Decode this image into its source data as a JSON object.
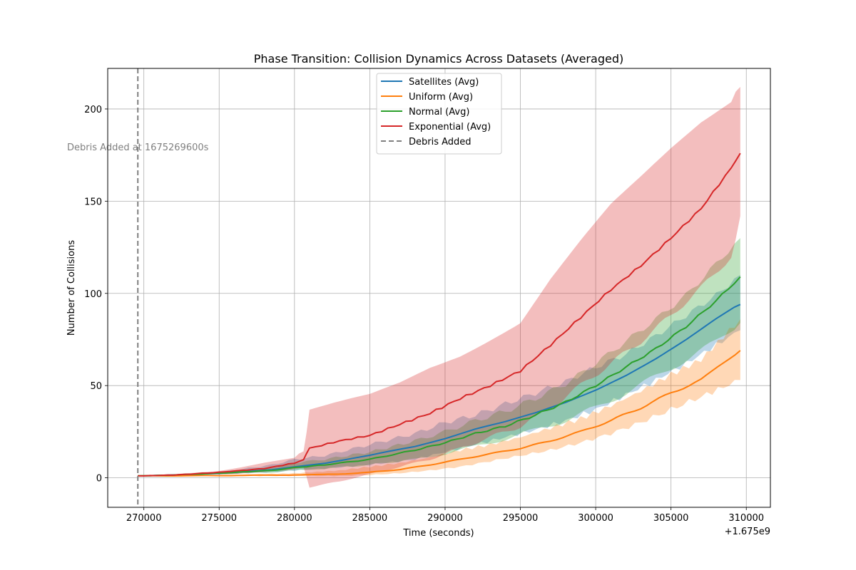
{
  "chart_data": {
    "type": "line",
    "title": "Phase Transition: Collision Dynamics Across Datasets (Averaged)",
    "xlabel": "Time (seconds)",
    "ylabel": "Number of Collisions",
    "x_offset_label": "+1.675e9",
    "xlim": [
      267600,
      311600
    ],
    "ylim": [
      -16,
      222
    ],
    "xticks": [
      270000,
      275000,
      280000,
      285000,
      290000,
      295000,
      300000,
      305000,
      310000
    ],
    "xtick_labels": [
      "270000",
      "275000",
      "280000",
      "285000",
      "290000",
      "295000",
      "300000",
      "305000",
      "310000"
    ],
    "yticks": [
      0,
      50,
      100,
      150,
      200
    ],
    "ytick_labels": [
      "0",
      "50",
      "100",
      "150",
      "200"
    ],
    "grid": true,
    "legend_position": "upper center",
    "legend": [
      {
        "label": "Satellites (Avg)",
        "color": "#1f77b4",
        "style": "solid"
      },
      {
        "label": "Uniform (Avg)",
        "color": "#ff7f0e",
        "style": "solid"
      },
      {
        "label": "Normal (Avg)",
        "color": "#2ca02c",
        "style": "solid"
      },
      {
        "label": "Exponential (Avg)",
        "color": "#d62728",
        "style": "solid"
      },
      {
        "label": "Debris Added",
        "color": "#808080",
        "style": "dashed"
      }
    ],
    "vline": {
      "x": 269600,
      "color": "#808080",
      "label": "Debris Added",
      "annotation": "Debris Added at 1675269600s"
    },
    "series": [
      {
        "name": "Satellites (Avg)",
        "color": "#1f77b4",
        "x": [
          269600,
          272000,
          275000,
          278500,
          280000,
          282000,
          285000,
          288000,
          290000,
          292000,
          294000,
          296000,
          298000,
          300000,
          302000,
          304000,
          306000,
          308000,
          309600
        ],
        "y": [
          1,
          1.5,
          2.5,
          4.5,
          6,
          8,
          12,
          17,
          21,
          26,
          30,
          35,
          41,
          48,
          56,
          65,
          75,
          86,
          94
        ],
        "lower": [
          1,
          1.2,
          2,
          3,
          4,
          5,
          7,
          10,
          14,
          18,
          22,
          26,
          31,
          37,
          45,
          53,
          62,
          72,
          80
        ],
        "upper": [
          1,
          1.8,
          3,
          7,
          10,
          12,
          18,
          24,
          30,
          34,
          40,
          46,
          52,
          60,
          67,
          77,
          88,
          99,
          110
        ]
      },
      {
        "name": "Uniform (Avg)",
        "color": "#ff7f0e",
        "x": [
          269600,
          275000,
          280000,
          283000,
          285000,
          287000,
          289000,
          291000,
          293000,
          295000,
          297000,
          299000,
          301000,
          303000,
          305000,
          307000,
          309600
        ],
        "y": [
          1,
          1.2,
          1.5,
          2,
          3,
          4.5,
          7,
          10,
          13,
          16,
          20,
          25,
          31,
          38,
          46,
          53,
          69
        ],
        "lower": [
          1,
          1,
          1,
          1,
          1.5,
          2.5,
          4,
          6,
          9,
          12,
          15,
          19,
          24,
          30,
          37,
          44,
          53
        ],
        "upper": [
          1,
          1.5,
          2.5,
          4,
          6,
          8,
          11,
          15,
          18,
          22,
          27,
          32,
          39,
          47,
          56,
          64,
          86
        ]
      },
      {
        "name": "Normal (Avg)",
        "color": "#2ca02c",
        "x": [
          269600,
          272000,
          275000,
          278500,
          280000,
          282000,
          285000,
          288000,
          290000,
          292000,
          294000,
          296000,
          298000,
          300000,
          302000,
          304000,
          306000,
          308000,
          309600
        ],
        "y": [
          1,
          1.5,
          2.5,
          4,
          5.5,
          7,
          10,
          15,
          19,
          24,
          28,
          34,
          41,
          50,
          60,
          70,
          82,
          96,
          109
        ],
        "lower": [
          1,
          1.2,
          2,
          3,
          4,
          5,
          7,
          10,
          13,
          17,
          21,
          26,
          31,
          38,
          46,
          55,
          64,
          74,
          84
        ],
        "upper": [
          1,
          1.8,
          3,
          5.5,
          8,
          10,
          14,
          20,
          25,
          31,
          36,
          43,
          51,
          62,
          74,
          86,
          99,
          116,
          130
        ]
      },
      {
        "name": "Exponential (Avg)",
        "color": "#d62728",
        "x": [
          269600,
          272000,
          275000,
          278000,
          280000,
          280600,
          281000,
          283000,
          285000,
          287000,
          289000,
          291000,
          293000,
          295000,
          297000,
          299000,
          301000,
          303000,
          305000,
          307000,
          309000,
          309600
        ],
        "y": [
          1,
          1.5,
          3,
          5,
          8,
          10,
          16,
          20,
          23,
          29,
          35,
          43,
          50,
          58,
          72,
          87,
          102,
          115,
          130,
          146,
          168,
          176
        ],
        "lower": [
          1,
          1.2,
          2,
          3,
          5,
          6,
          -5,
          -2,
          2,
          6,
          10,
          16,
          22,
          28,
          38,
          50,
          62,
          74,
          88,
          103,
          120,
          142
        ],
        "upper": [
          1,
          1.8,
          4,
          8,
          11,
          14,
          36,
          40,
          44,
          51,
          60,
          67,
          76,
          85,
          108,
          128,
          147,
          162,
          178,
          193,
          205,
          212
        ]
      }
    ]
  }
}
